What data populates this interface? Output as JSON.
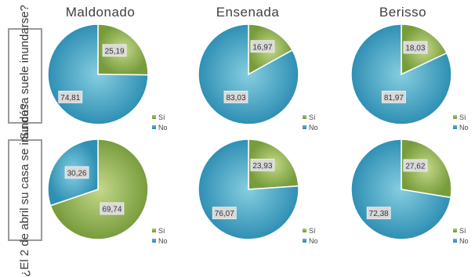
{
  "columns": [
    "Maldonado",
    "Ensenada",
    "Berisso"
  ],
  "rows": [
    "¿Su casa suele inundarse?",
    "¿El 2 de abril su casa se inundó?"
  ],
  "colors": {
    "si_light": "#c4d88a",
    "si_dark": "#789c3c",
    "no_light": "#86cee0",
    "no_dark": "#2f8fb4",
    "label_box": "#d9d9d9",
    "row_border": "#9a9a9a"
  },
  "chart_data": [
    {
      "type": "pie",
      "column": "Maldonado",
      "row": "¿Su casa suele inundarse?",
      "categories": [
        "Sí",
        "No"
      ],
      "values": [
        25.19,
        74.81
      ],
      "labels": [
        "25,19",
        "74,81"
      ],
      "legend": [
        "Sí",
        "No"
      ]
    },
    {
      "type": "pie",
      "column": "Ensenada",
      "row": "¿Su casa suele inundarse?",
      "categories": [
        "Sí",
        "No"
      ],
      "values": [
        16.97,
        83.03
      ],
      "labels": [
        "16,97",
        "83,03"
      ],
      "legend": [
        "Sí",
        "No"
      ]
    },
    {
      "type": "pie",
      "column": "Berisso",
      "row": "¿Su casa suele inundarse?",
      "categories": [
        "Sí",
        "No"
      ],
      "values": [
        18.03,
        81.97
      ],
      "labels": [
        "18,03",
        "81,97"
      ],
      "legend": [
        "Sí",
        "No"
      ]
    },
    {
      "type": "pie",
      "column": "Maldonado",
      "row": "¿El 2 de abril su casa se inundó?",
      "categories": [
        "Sí",
        "No"
      ],
      "values": [
        69.74,
        30.26
      ],
      "labels": [
        "69,74",
        "30,26"
      ],
      "legend": [
        "Sí",
        "No"
      ]
    },
    {
      "type": "pie",
      "column": "Ensenada",
      "row": "¿El 2 de abril su casa se inundó?",
      "categories": [
        "Sí",
        "No"
      ],
      "values": [
        23.93,
        76.07
      ],
      "labels": [
        "23,93",
        "76,07"
      ],
      "legend": [
        "Sí",
        "No"
      ]
    },
    {
      "type": "pie",
      "column": "Berisso",
      "row": "¿El 2 de abril su casa se inundó?",
      "categories": [
        "Sí",
        "No"
      ],
      "values": [
        27.62,
        72.38
      ],
      "labels": [
        "27,62",
        "72,38"
      ],
      "legend": [
        "Sí",
        "No"
      ]
    }
  ]
}
